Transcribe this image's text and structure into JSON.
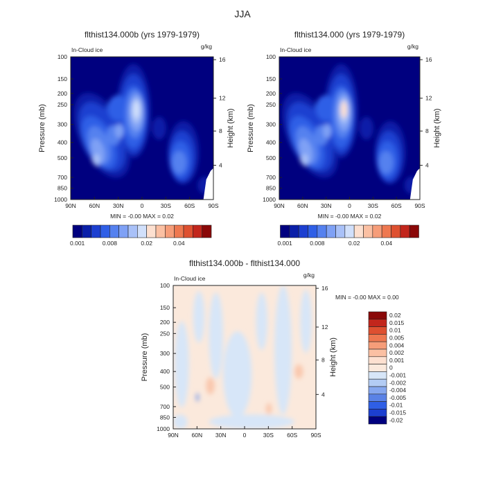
{
  "figure_title": "JJA",
  "chart_data": [
    {
      "type": "heatmap",
      "title": "flthist134.000b (yrs 1979-1979)",
      "variable_label": "In-Cloud ice",
      "units": "g/kg",
      "ylabel": "Pressure (mb)",
      "ylabel_right": "Height (km)",
      "x_ticks": [
        "90N",
        "60N",
        "30N",
        "0",
        "30S",
        "60S",
        "90S"
      ],
      "y_ticks": [
        "100",
        "150",
        "200",
        "250",
        "300",
        "400",
        "500",
        "700",
        "850",
        "1000"
      ],
      "height_ticks": [
        "16",
        "12",
        "8",
        "4"
      ],
      "min_max_text": "MIN =   -0.00   MAX =   0.02",
      "colorbar_labels": [
        "0.001",
        "0.008",
        "0.02",
        "0.04"
      ],
      "colors": [
        "#00007f",
        "#0a1fa8",
        "#1c3fd0",
        "#2f5fe6",
        "#5581ef",
        "#7fa1f5",
        "#a9c1f8",
        "#d1e0fb",
        "#fde0d0",
        "#fbc0a3",
        "#f69d79",
        "#ee7850",
        "#de5030",
        "#c2261c",
        "#8a0808"
      ]
    },
    {
      "type": "heatmap",
      "title": "flthist134.000 (yrs 1979-1979)",
      "variable_label": "In-Cloud ice",
      "units": "g/kg",
      "ylabel": "Pressure (mb)",
      "ylabel_right": "Height (km)",
      "x_ticks": [
        "90N",
        "60N",
        "30N",
        "0",
        "30S",
        "60S",
        "90S"
      ],
      "y_ticks": [
        "100",
        "150",
        "200",
        "250",
        "300",
        "400",
        "500",
        "700",
        "850",
        "1000"
      ],
      "height_ticks": [
        "16",
        "12",
        "8",
        "4"
      ],
      "min_max_text": "MIN =   -0.00   MAX =   0.02",
      "colorbar_labels": [
        "0.001",
        "0.008",
        "0.02",
        "0.04"
      ],
      "colors": [
        "#00007f",
        "#0a1fa8",
        "#1c3fd0",
        "#2f5fe6",
        "#5581ef",
        "#7fa1f5",
        "#a9c1f8",
        "#d1e0fb",
        "#fde0d0",
        "#fbc0a3",
        "#f69d79",
        "#ee7850",
        "#de5030",
        "#c2261c",
        "#8a0808"
      ]
    },
    {
      "type": "heatmap",
      "title": "flthist134.000b - flthist134.000",
      "variable_label": "In-Cloud ice",
      "units": "g/kg",
      "ylabel": "Pressure (mb)",
      "ylabel_right": "Height (km)",
      "x_ticks": [
        "90N",
        "60N",
        "30N",
        "0",
        "30S",
        "60S",
        "90S"
      ],
      "y_ticks": [
        "100",
        "150",
        "200",
        "250",
        "300",
        "400",
        "500",
        "700",
        "850",
        "1000"
      ],
      "height_ticks": [
        "16",
        "12",
        "8",
        "4"
      ],
      "min_max_text": "MIN =   -0.00   MAX =   0.00",
      "colorbar_labels": [
        "0.02",
        "0.015",
        "0.01",
        "0.005",
        "0.004",
        "0.002",
        "0.001",
        "0",
        "-0.001",
        "-0.002",
        "-0.004",
        "-0.005",
        "-0.01",
        "-0.015",
        "-0.02"
      ],
      "colors": [
        "#8a0808",
        "#c2261c",
        "#de5030",
        "#ee7850",
        "#f69d79",
        "#fbc0a3",
        "#fde0d0",
        "#fbe9dc",
        "#d7e6f8",
        "#b3ccf4",
        "#86a7ef",
        "#5a82e6",
        "#2f5fe6",
        "#1c3fd0",
        "#00007f"
      ]
    }
  ]
}
